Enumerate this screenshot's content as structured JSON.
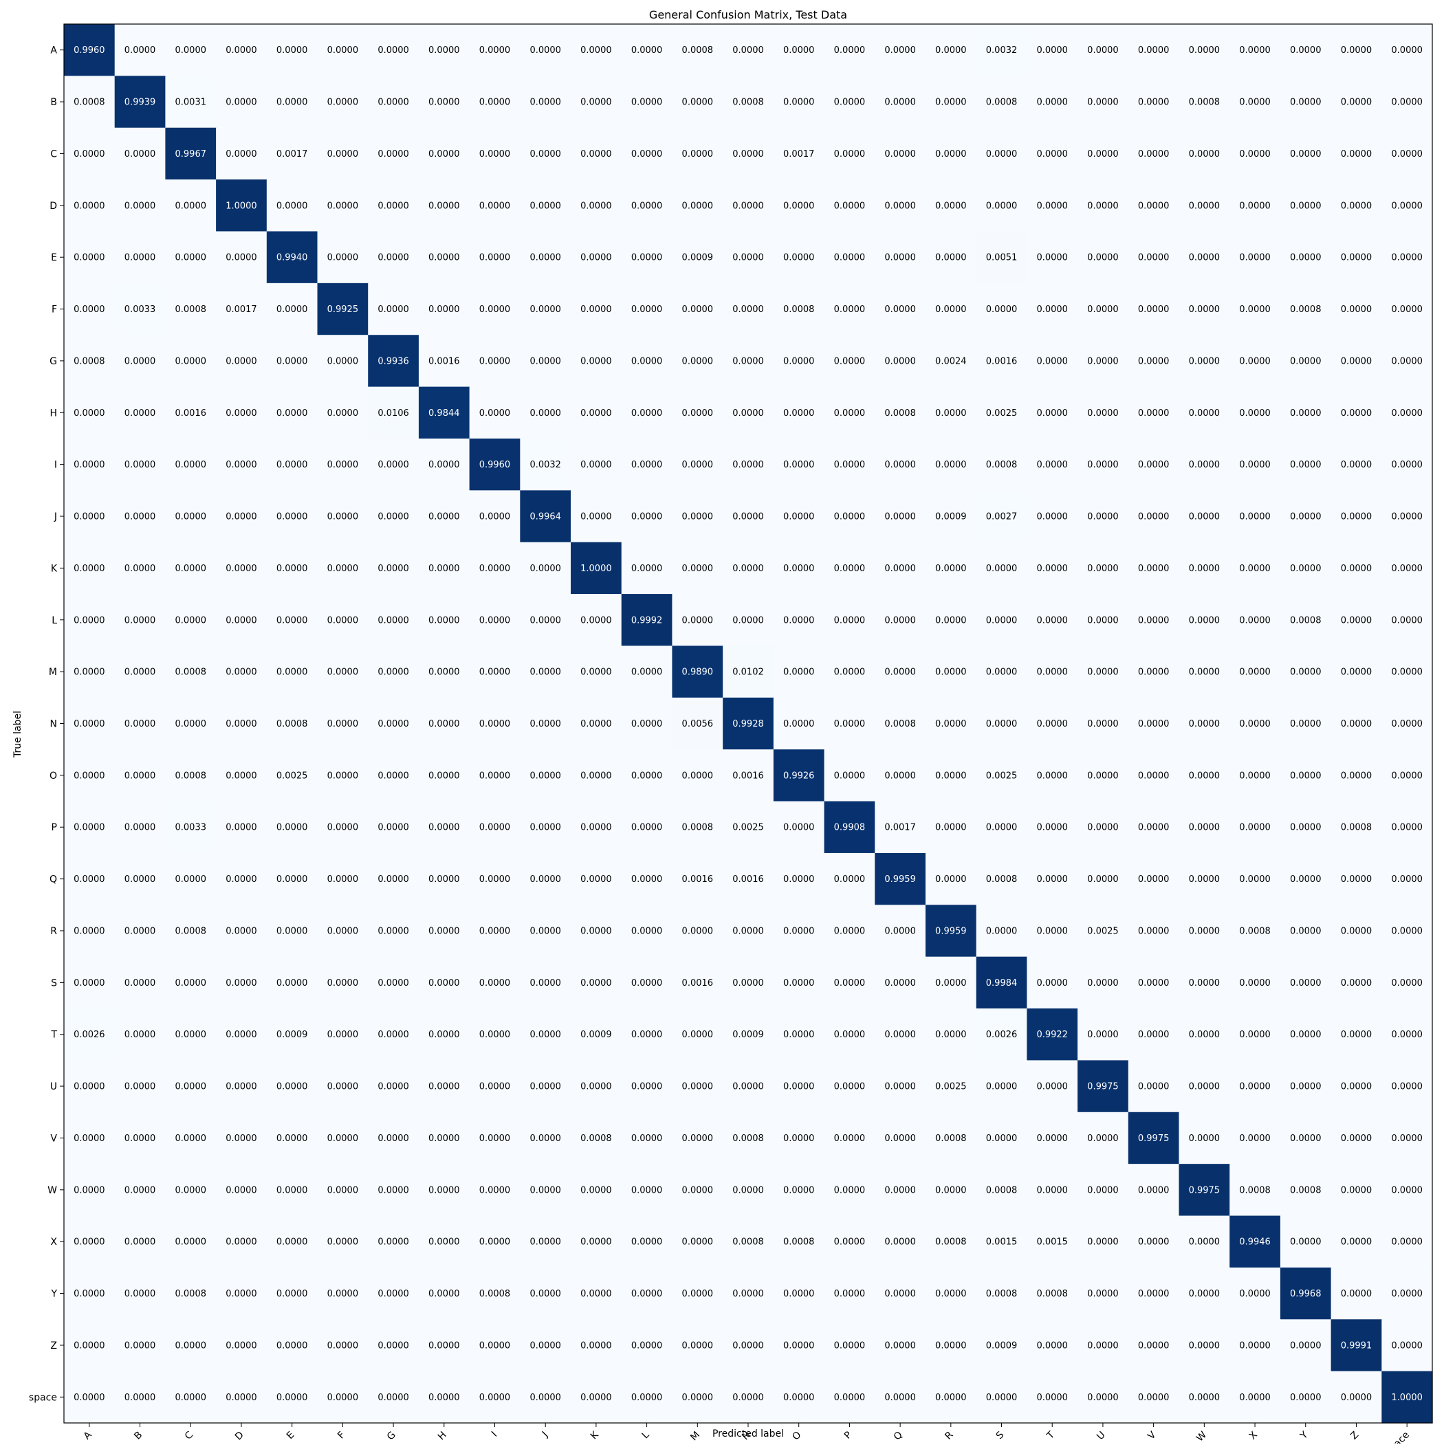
{
  "chart_data": {
    "type": "heatmap",
    "title": "General Confusion Matrix, Test Data",
    "xlabel": "Predicted label",
    "ylabel": "True label",
    "labels": [
      "A",
      "B",
      "C",
      "D",
      "E",
      "F",
      "G",
      "H",
      "I",
      "J",
      "K",
      "L",
      "M",
      "N",
      "O",
      "P",
      "Q",
      "R",
      "S",
      "T",
      "U",
      "V",
      "W",
      "X",
      "Y",
      "Z",
      "space"
    ],
    "colormap": "Blues",
    "vmin": 0,
    "vmax": 1,
    "value_format": "4 decimals",
    "matrix": [
      [
        0.996,
        0.0,
        0.0,
        0.0,
        0.0,
        0.0,
        0.0,
        0.0,
        0.0,
        0.0,
        0.0,
        0.0,
        0.0008,
        0.0,
        0.0,
        0.0,
        0.0,
        0.0,
        0.0032,
        0.0,
        0.0,
        0.0,
        0.0,
        0.0,
        0.0,
        0.0,
        0.0
      ],
      [
        0.0008,
        0.9939,
        0.0031,
        0.0,
        0.0,
        0.0,
        0.0,
        0.0,
        0.0,
        0.0,
        0.0,
        0.0,
        0.0,
        0.0008,
        0.0,
        0.0,
        0.0,
        0.0,
        0.0008,
        0.0,
        0.0,
        0.0,
        0.0008,
        0.0,
        0.0,
        0.0,
        0.0
      ],
      [
        0.0,
        0.0,
        0.9967,
        0.0,
        0.0017,
        0.0,
        0.0,
        0.0,
        0.0,
        0.0,
        0.0,
        0.0,
        0.0,
        0.0,
        0.0017,
        0.0,
        0.0,
        0.0,
        0.0,
        0.0,
        0.0,
        0.0,
        0.0,
        0.0,
        0.0,
        0.0,
        0.0
      ],
      [
        0.0,
        0.0,
        0.0,
        1.0,
        0.0,
        0.0,
        0.0,
        0.0,
        0.0,
        0.0,
        0.0,
        0.0,
        0.0,
        0.0,
        0.0,
        0.0,
        0.0,
        0.0,
        0.0,
        0.0,
        0.0,
        0.0,
        0.0,
        0.0,
        0.0,
        0.0,
        0.0
      ],
      [
        0.0,
        0.0,
        0.0,
        0.0,
        0.994,
        0.0,
        0.0,
        0.0,
        0.0,
        0.0,
        0.0,
        0.0,
        0.0009,
        0.0,
        0.0,
        0.0,
        0.0,
        0.0,
        0.0051,
        0.0,
        0.0,
        0.0,
        0.0,
        0.0,
        0.0,
        0.0,
        0.0
      ],
      [
        0.0,
        0.0033,
        0.0008,
        0.0017,
        0.0,
        0.9925,
        0.0,
        0.0,
        0.0,
        0.0,
        0.0,
        0.0,
        0.0,
        0.0,
        0.0008,
        0.0,
        0.0,
        0.0,
        0.0,
        0.0,
        0.0,
        0.0,
        0.0,
        0.0,
        0.0008,
        0.0,
        0.0
      ],
      [
        0.0008,
        0.0,
        0.0,
        0.0,
        0.0,
        0.0,
        0.9936,
        0.0016,
        0.0,
        0.0,
        0.0,
        0.0,
        0.0,
        0.0,
        0.0,
        0.0,
        0.0,
        0.0024,
        0.0016,
        0.0,
        0.0,
        0.0,
        0.0,
        0.0,
        0.0,
        0.0,
        0.0
      ],
      [
        0.0,
        0.0,
        0.0016,
        0.0,
        0.0,
        0.0,
        0.0106,
        0.9844,
        0.0,
        0.0,
        0.0,
        0.0,
        0.0,
        0.0,
        0.0,
        0.0,
        0.0008,
        0.0,
        0.0025,
        0.0,
        0.0,
        0.0,
        0.0,
        0.0,
        0.0,
        0.0,
        0.0
      ],
      [
        0.0,
        0.0,
        0.0,
        0.0,
        0.0,
        0.0,
        0.0,
        0.0,
        0.996,
        0.0032,
        0.0,
        0.0,
        0.0,
        0.0,
        0.0,
        0.0,
        0.0,
        0.0,
        0.0008,
        0.0,
        0.0,
        0.0,
        0.0,
        0.0,
        0.0,
        0.0,
        0.0
      ],
      [
        0.0,
        0.0,
        0.0,
        0.0,
        0.0,
        0.0,
        0.0,
        0.0,
        0.0,
        0.9964,
        0.0,
        0.0,
        0.0,
        0.0,
        0.0,
        0.0,
        0.0,
        0.0009,
        0.0027,
        0.0,
        0.0,
        0.0,
        0.0,
        0.0,
        0.0,
        0.0,
        0.0
      ],
      [
        0.0,
        0.0,
        0.0,
        0.0,
        0.0,
        0.0,
        0.0,
        0.0,
        0.0,
        0.0,
        1.0,
        0.0,
        0.0,
        0.0,
        0.0,
        0.0,
        0.0,
        0.0,
        0.0,
        0.0,
        0.0,
        0.0,
        0.0,
        0.0,
        0.0,
        0.0,
        0.0
      ],
      [
        0.0,
        0.0,
        0.0,
        0.0,
        0.0,
        0.0,
        0.0,
        0.0,
        0.0,
        0.0,
        0.0,
        0.9992,
        0.0,
        0.0,
        0.0,
        0.0,
        0.0,
        0.0,
        0.0,
        0.0,
        0.0,
        0.0,
        0.0,
        0.0,
        0.0008,
        0.0,
        0.0
      ],
      [
        0.0,
        0.0,
        0.0008,
        0.0,
        0.0,
        0.0,
        0.0,
        0.0,
        0.0,
        0.0,
        0.0,
        0.0,
        0.989,
        0.0102,
        0.0,
        0.0,
        0.0,
        0.0,
        0.0,
        0.0,
        0.0,
        0.0,
        0.0,
        0.0,
        0.0,
        0.0,
        0.0
      ],
      [
        0.0,
        0.0,
        0.0,
        0.0,
        0.0008,
        0.0,
        0.0,
        0.0,
        0.0,
        0.0,
        0.0,
        0.0,
        0.0056,
        0.9928,
        0.0,
        0.0,
        0.0008,
        0.0,
        0.0,
        0.0,
        0.0,
        0.0,
        0.0,
        0.0,
        0.0,
        0.0,
        0.0
      ],
      [
        0.0,
        0.0,
        0.0008,
        0.0,
        0.0025,
        0.0,
        0.0,
        0.0,
        0.0,
        0.0,
        0.0,
        0.0,
        0.0,
        0.0016,
        0.9926,
        0.0,
        0.0,
        0.0,
        0.0025,
        0.0,
        0.0,
        0.0,
        0.0,
        0.0,
        0.0,
        0.0,
        0.0
      ],
      [
        0.0,
        0.0,
        0.0033,
        0.0,
        0.0,
        0.0,
        0.0,
        0.0,
        0.0,
        0.0,
        0.0,
        0.0,
        0.0008,
        0.0025,
        0.0,
        0.9908,
        0.0017,
        0.0,
        0.0,
        0.0,
        0.0,
        0.0,
        0.0,
        0.0,
        0.0,
        0.0008,
        0.0
      ],
      [
        0.0,
        0.0,
        0.0,
        0.0,
        0.0,
        0.0,
        0.0,
        0.0,
        0.0,
        0.0,
        0.0,
        0.0,
        0.0016,
        0.0016,
        0.0,
        0.0,
        0.9959,
        0.0,
        0.0008,
        0.0,
        0.0,
        0.0,
        0.0,
        0.0,
        0.0,
        0.0,
        0.0
      ],
      [
        0.0,
        0.0,
        0.0008,
        0.0,
        0.0,
        0.0,
        0.0,
        0.0,
        0.0,
        0.0,
        0.0,
        0.0,
        0.0,
        0.0,
        0.0,
        0.0,
        0.0,
        0.9959,
        0.0,
        0.0,
        0.0025,
        0.0,
        0.0,
        0.0008,
        0.0,
        0.0,
        0.0
      ],
      [
        0.0,
        0.0,
        0.0,
        0.0,
        0.0,
        0.0,
        0.0,
        0.0,
        0.0,
        0.0,
        0.0,
        0.0,
        0.0016,
        0.0,
        0.0,
        0.0,
        0.0,
        0.0,
        0.9984,
        0.0,
        0.0,
        0.0,
        0.0,
        0.0,
        0.0,
        0.0,
        0.0
      ],
      [
        0.0026,
        0.0,
        0.0,
        0.0,
        0.0009,
        0.0,
        0.0,
        0.0,
        0.0,
        0.0,
        0.0009,
        0.0,
        0.0,
        0.0009,
        0.0,
        0.0,
        0.0,
        0.0,
        0.0026,
        0.9922,
        0.0,
        0.0,
        0.0,
        0.0,
        0.0,
        0.0,
        0.0
      ],
      [
        0.0,
        0.0,
        0.0,
        0.0,
        0.0,
        0.0,
        0.0,
        0.0,
        0.0,
        0.0,
        0.0,
        0.0,
        0.0,
        0.0,
        0.0,
        0.0,
        0.0,
        0.0025,
        0.0,
        0.0,
        0.9975,
        0.0,
        0.0,
        0.0,
        0.0,
        0.0,
        0.0
      ],
      [
        0.0,
        0.0,
        0.0,
        0.0,
        0.0,
        0.0,
        0.0,
        0.0,
        0.0,
        0.0,
        0.0008,
        0.0,
        0.0,
        0.0008,
        0.0,
        0.0,
        0.0,
        0.0008,
        0.0,
        0.0,
        0.0,
        0.9975,
        0.0,
        0.0,
        0.0,
        0.0,
        0.0
      ],
      [
        0.0,
        0.0,
        0.0,
        0.0,
        0.0,
        0.0,
        0.0,
        0.0,
        0.0,
        0.0,
        0.0,
        0.0,
        0.0,
        0.0,
        0.0,
        0.0,
        0.0,
        0.0,
        0.0008,
        0.0,
        0.0,
        0.0,
        0.9975,
        0.0008,
        0.0008,
        0.0,
        0.0
      ],
      [
        0.0,
        0.0,
        0.0,
        0.0,
        0.0,
        0.0,
        0.0,
        0.0,
        0.0,
        0.0,
        0.0,
        0.0,
        0.0,
        0.0008,
        0.0008,
        0.0,
        0.0,
        0.0008,
        0.0015,
        0.0015,
        0.0,
        0.0,
        0.0,
        0.9946,
        0.0,
        0.0,
        0.0
      ],
      [
        0.0,
        0.0,
        0.0008,
        0.0,
        0.0,
        0.0,
        0.0,
        0.0,
        0.0008,
        0.0,
        0.0,
        0.0,
        0.0,
        0.0,
        0.0,
        0.0,
        0.0,
        0.0,
        0.0008,
        0.0008,
        0.0,
        0.0,
        0.0,
        0.0,
        0.9968,
        0.0,
        0.0
      ],
      [
        0.0,
        0.0,
        0.0,
        0.0,
        0.0,
        0.0,
        0.0,
        0.0,
        0.0,
        0.0,
        0.0,
        0.0,
        0.0,
        0.0,
        0.0,
        0.0,
        0.0,
        0.0,
        0.0009,
        0.0,
        0.0,
        0.0,
        0.0,
        0.0,
        0.0,
        0.9991,
        0.0
      ],
      [
        0.0,
        0.0,
        0.0,
        0.0,
        0.0,
        0.0,
        0.0,
        0.0,
        0.0,
        0.0,
        0.0,
        0.0,
        0.0,
        0.0,
        0.0,
        0.0,
        0.0,
        0.0,
        0.0,
        0.0,
        0.0,
        0.0,
        0.0,
        0.0,
        0.0,
        0.0,
        1.0
      ]
    ]
  },
  "colors": {
    "low": "#f7fbff",
    "high": "#08306b",
    "text_dark": "#000000",
    "text_light": "#ffffff"
  }
}
